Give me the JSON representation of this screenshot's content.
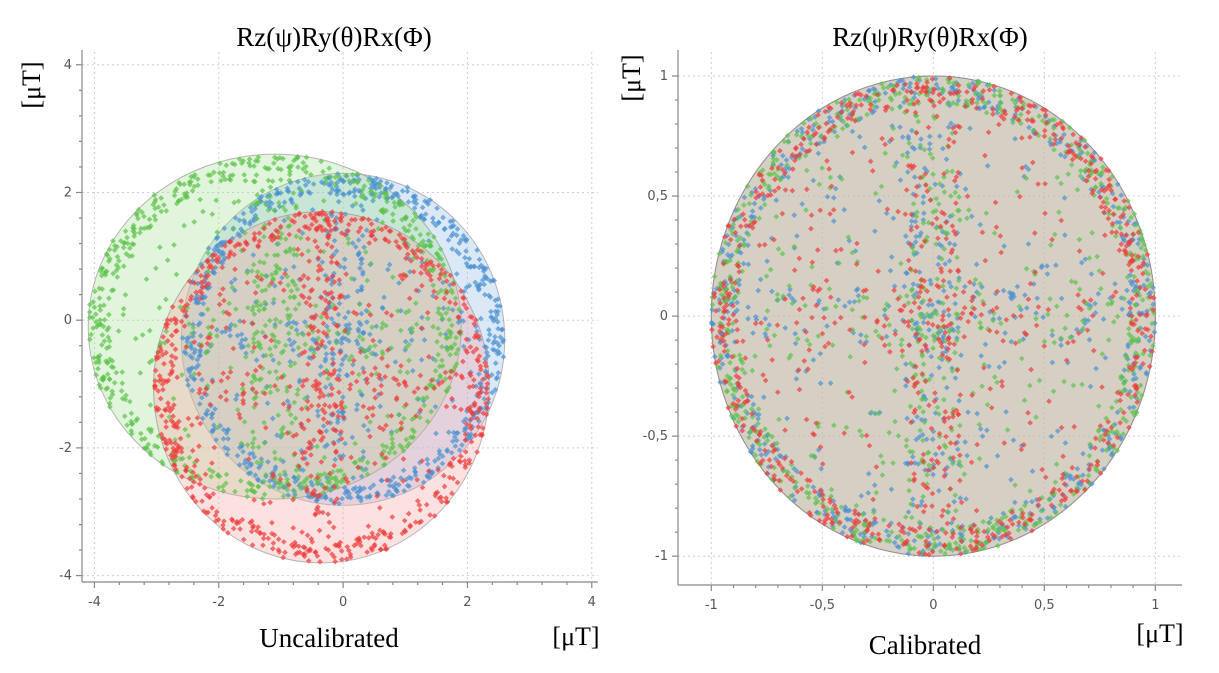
{
  "chart_data": [
    {
      "type": "scatter",
      "title": "Rz(ψ)Ry(θ)Rx(Φ)",
      "caption": "Uncalibrated",
      "xlabel": "[μT]",
      "ylabel": "[μT]",
      "xlim": [
        -4.2,
        4.1
      ],
      "ylim": [
        -4.1,
        4.2
      ],
      "xticks": [
        -4,
        -2,
        0,
        2,
        4
      ],
      "yticks": [
        -4,
        -2,
        0,
        2,
        4
      ],
      "xtick_labels": [
        "-4",
        "-2",
        "0",
        "2",
        "4"
      ],
      "ytick_labels": [
        "-4",
        "-2",
        "0",
        "2",
        "4"
      ],
      "grid": true,
      "series": [
        {
          "color": "#8fbce6",
          "point_color": "#4a90d0",
          "ellipse": {
            "cx": 0.0,
            "cy": -0.3,
            "rx": 2.6,
            "ry": 2.6
          }
        },
        {
          "color": "#9fe08f",
          "point_color": "#5cc24a",
          "ellipse": {
            "cx": -1.1,
            "cy": -0.1,
            "rx": 3.0,
            "ry": 2.7
          }
        },
        {
          "color": "#f5a3a3",
          "point_color": "#ee3b3b",
          "ellipse": {
            "cx": -0.35,
            "cy": -1.05,
            "rx": 2.7,
            "ry": 2.75
          }
        }
      ]
    },
    {
      "type": "scatter",
      "title": "Rz(ψ)Ry(θ)Rx(Φ)",
      "caption": "Calibrated",
      "xlabel": "[μT]",
      "ylabel": "[μT]",
      "xlim": [
        -1.15,
        1.12
      ],
      "ylim": [
        -1.12,
        1.1
      ],
      "xticks": [
        -1,
        -0.5,
        0,
        0.5,
        1
      ],
      "yticks": [
        -1,
        -0.5,
        0,
        0.5,
        1
      ],
      "xtick_labels": [
        "-1",
        "-0,5",
        "0",
        "0,5",
        "1"
      ],
      "ytick_labels": [
        "-1",
        "-0,5",
        "0",
        "0,5",
        "1"
      ],
      "grid": true,
      "series": [
        {
          "color": "#8fbce6",
          "point_color": "#4a90d0",
          "ellipse": {
            "cx": 0.0,
            "cy": 0.0,
            "rx": 1.0,
            "ry": 1.0
          }
        },
        {
          "color": "#9fe08f",
          "point_color": "#5cc24a",
          "ellipse": {
            "cx": 0.0,
            "cy": 0.0,
            "rx": 1.0,
            "ry": 1.0
          }
        },
        {
          "color": "#f5a3a3",
          "point_color": "#ee3b3b",
          "ellipse": {
            "cx": 0.0,
            "cy": 0.0,
            "rx": 1.0,
            "ry": 1.0
          }
        }
      ]
    }
  ]
}
